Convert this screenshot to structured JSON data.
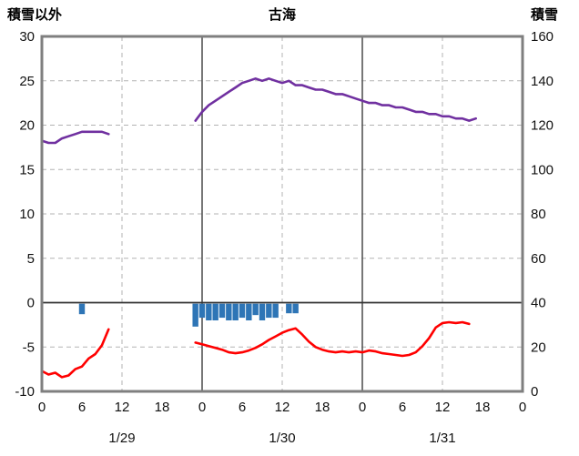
{
  "header": {
    "left_axis_title": "積雪以外",
    "chart_title": "古海",
    "right_axis_title": "積雪"
  },
  "chart_data": {
    "type": "line",
    "title": "古海",
    "legend": "none",
    "grid": {
      "h_dashed": [
        25,
        20,
        15,
        10,
        5,
        -5
      ],
      "h_solid": [
        0
      ],
      "v_dashed": [
        12,
        36,
        60
      ],
      "v_solid": [
        24,
        48
      ]
    },
    "left_axis": {
      "label": "積雪以外",
      "range": [
        -10,
        30
      ],
      "ticks": [
        30,
        25,
        20,
        15,
        10,
        5,
        0,
        -5,
        -10
      ]
    },
    "right_axis": {
      "label": "積雪",
      "range": [
        0,
        160
      ],
      "ticks": [
        160,
        140,
        120,
        100,
        80,
        60,
        40,
        20,
        0
      ]
    },
    "x_axis": {
      "range": [
        0,
        72
      ],
      "ticks": [
        {
          "hour": 0,
          "label": "0"
        },
        {
          "hour": 6,
          "label": "6"
        },
        {
          "hour": 12,
          "label": "12"
        },
        {
          "hour": 18,
          "label": "18"
        },
        {
          "hour": 24,
          "label": "0"
        },
        {
          "hour": 30,
          "label": "6"
        },
        {
          "hour": 36,
          "label": "12"
        },
        {
          "hour": 42,
          "label": "18"
        },
        {
          "hour": 48,
          "label": "0"
        },
        {
          "hour": 54,
          "label": "6"
        },
        {
          "hour": 60,
          "label": "12"
        },
        {
          "hour": 66,
          "label": "18"
        },
        {
          "hour": 72,
          "label": "0"
        }
      ],
      "date_labels": [
        {
          "hour": 12,
          "label": "1/29"
        },
        {
          "hour": 36,
          "label": "1/30"
        },
        {
          "hour": 60,
          "label": "1/31"
        }
      ]
    },
    "series": [
      {
        "name": "purple_line",
        "type": "line",
        "axis": "right",
        "color": "#7030a0",
        "segments": [
          {
            "start_hour": 0,
            "values": [
              113,
              112,
              112,
              114,
              115,
              116,
              117,
              117,
              117,
              117,
              116
            ]
          },
          {
            "start_hour": 23,
            "values": [
              122,
              126,
              129,
              131,
              133,
              135,
              137,
              139,
              140,
              141,
              140,
              141,
              140,
              139,
              140,
              138,
              138,
              137,
              136,
              136,
              135,
              134,
              134,
              133,
              132,
              131,
              130,
              130,
              129,
              129,
              128,
              128,
              127,
              126,
              126,
              125,
              125,
              124,
              124,
              123,
              123,
              122,
              123
            ]
          }
        ]
      },
      {
        "name": "red_line",
        "type": "line",
        "axis": "left",
        "color": "#ff0000",
        "segments": [
          {
            "start_hour": 0,
            "values": [
              -7.7,
              -8.1,
              -7.9,
              -8.4,
              -8.2,
              -7.5,
              -7.2,
              -6.3,
              -5.8,
              -4.8,
              -3.0
            ]
          },
          {
            "start_hour": 23,
            "values": [
              -4.5,
              -4.7,
              -4.9,
              -5.1,
              -5.3,
              -5.6,
              -5.7,
              -5.6,
              -5.4,
              -5.1,
              -4.7,
              -4.2,
              -3.8,
              -3.4,
              -3.1,
              -2.9,
              -3.6,
              -4.4,
              -5.0,
              -5.3,
              -5.5,
              -5.6,
              -5.5,
              -5.6,
              -5.5,
              -5.6,
              -5.4,
              -5.5,
              -5.7,
              -5.8,
              -5.9,
              -6.0,
              -5.9,
              -5.6,
              -4.9,
              -4.0,
              -2.8,
              -2.3,
              -2.2,
              -2.3,
              -2.2,
              -2.4
            ]
          }
        ]
      },
      {
        "name": "blue_bars",
        "type": "bar",
        "axis": "left",
        "direction": "down_from_zero",
        "color": "#2e75b6",
        "points": [
          {
            "hour": 6,
            "value": 1.3
          },
          {
            "hour": 23,
            "value": 2.7
          },
          {
            "hour": 24,
            "value": 1.7
          },
          {
            "hour": 25,
            "value": 2.0
          },
          {
            "hour": 26,
            "value": 2.0
          },
          {
            "hour": 27,
            "value": 1.7
          },
          {
            "hour": 28,
            "value": 2.0
          },
          {
            "hour": 29,
            "value": 2.0
          },
          {
            "hour": 30,
            "value": 1.7
          },
          {
            "hour": 31,
            "value": 2.0
          },
          {
            "hour": 32,
            "value": 1.4
          },
          {
            "hour": 33,
            "value": 2.0
          },
          {
            "hour": 34,
            "value": 1.7
          },
          {
            "hour": 35,
            "value": 1.7
          },
          {
            "hour": 37,
            "value": 1.2
          },
          {
            "hour": 38,
            "value": 1.2
          }
        ]
      }
    ]
  }
}
